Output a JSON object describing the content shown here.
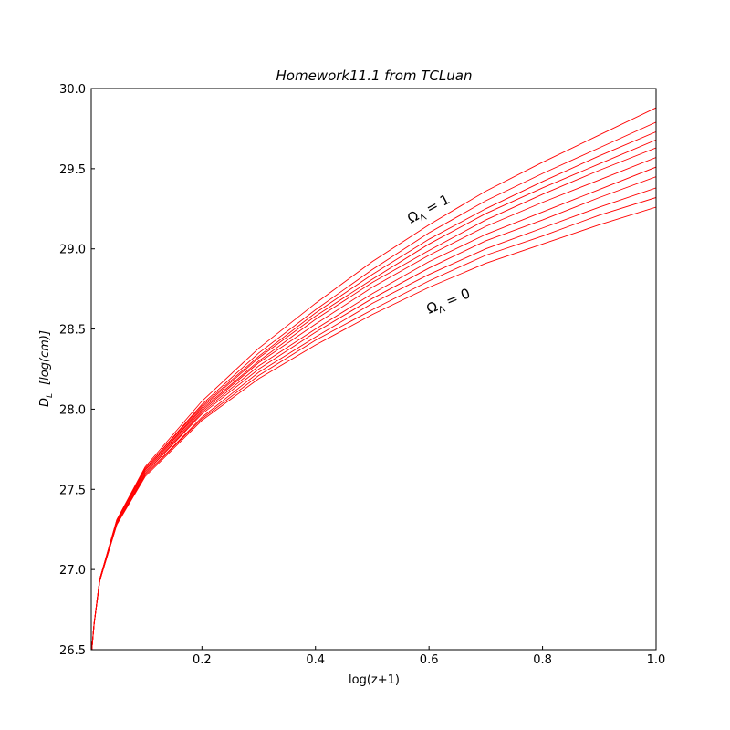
{
  "chart_data": {
    "type": "line",
    "title": "Homework11.1   from   TCLuan",
    "xlabel": "log(z+1)",
    "ylabel": {
      "main": "D",
      "sub": "L",
      "unit": "[log(cm)]"
    },
    "annotations": [
      {
        "main": "Ω",
        "sub": "Λ",
        "rest": " = 1"
      },
      {
        "main": "Ω",
        "sub": "Λ",
        "rest": " = 0"
      }
    ],
    "xlim": [
      0.005,
      1
    ],
    "ylim": [
      26.5,
      30
    ],
    "xticks": [
      0.2,
      0.4,
      0.6,
      0.8,
      {
        "value": 1,
        "label": "1.0"
      }
    ],
    "yticks": [
      26.5,
      {
        "value": 27,
        "label": "27.0"
      },
      27.5,
      {
        "value": 28,
        "label": "28.0"
      },
      28.5,
      {
        "value": 29,
        "label": "29.0"
      },
      29.5,
      {
        "value": 30,
        "label": "30.0"
      }
    ],
    "x": [
      0.006,
      0.01,
      0.02,
      0.05,
      0.1,
      0.2,
      0.3,
      0.4,
      0.5,
      0.6,
      0.7,
      0.8,
      0.9,
      1.0
    ],
    "series": [
      {
        "color": "#ff0000",
        "values": [
          26.5,
          26.66,
          26.93,
          27.28,
          27.58,
          27.93,
          28.19,
          28.4,
          28.59,
          28.76,
          28.91,
          29.03,
          29.15,
          29.26
        ]
      },
      {
        "color": "#ff0000",
        "values": [
          26.5,
          26.66,
          26.93,
          27.28,
          27.59,
          27.94,
          28.21,
          28.43,
          28.62,
          28.8,
          28.96,
          29.08,
          29.21,
          29.32
        ]
      },
      {
        "color": "#ff0000",
        "values": [
          26.5,
          26.66,
          26.93,
          27.29,
          27.59,
          27.95,
          28.23,
          28.45,
          28.66,
          28.84,
          29.0,
          29.13,
          29.26,
          29.38
        ]
      },
      {
        "color": "#ff0000",
        "values": [
          26.5,
          26.66,
          26.93,
          27.29,
          27.6,
          27.97,
          28.25,
          28.48,
          28.69,
          28.88,
          29.05,
          29.18,
          29.32,
          29.45
        ]
      },
      {
        "color": "#ff0000",
        "values": [
          26.5,
          26.66,
          26.93,
          27.29,
          27.6,
          27.98,
          28.27,
          28.5,
          28.72,
          28.92,
          29.09,
          29.23,
          29.37,
          29.51
        ]
      },
      {
        "color": "#ff0000",
        "values": [
          26.5,
          26.66,
          26.94,
          27.3,
          27.61,
          27.99,
          28.29,
          28.53,
          28.76,
          28.96,
          29.14,
          29.29,
          29.43,
          29.57
        ]
      },
      {
        "color": "#ff0000",
        "values": [
          26.5,
          26.66,
          26.94,
          27.3,
          27.62,
          28.0,
          28.3,
          28.56,
          28.79,
          28.99,
          29.18,
          29.34,
          29.49,
          29.63
        ]
      },
      {
        "color": "#ff0000",
        "values": [
          26.5,
          26.66,
          26.94,
          27.3,
          27.62,
          28.01,
          28.32,
          28.58,
          28.81,
          29.03,
          29.22,
          29.38,
          29.53,
          29.68
        ]
      },
      {
        "color": "#ff0000",
        "values": [
          26.5,
          26.66,
          26.94,
          27.3,
          27.63,
          28.02,
          28.33,
          28.6,
          28.84,
          29.06,
          29.25,
          29.42,
          29.58,
          29.73
        ]
      },
      {
        "color": "#ff0000",
        "values": [
          26.5,
          26.66,
          26.94,
          27.31,
          27.63,
          28.03,
          28.35,
          28.62,
          28.87,
          29.1,
          29.3,
          29.47,
          29.63,
          29.79
        ]
      },
      {
        "color": "#ff0000",
        "values": [
          26.5,
          26.66,
          26.94,
          27.31,
          27.64,
          28.05,
          28.38,
          28.66,
          28.92,
          29.15,
          29.36,
          29.54,
          29.71,
          29.88
        ]
      }
    ]
  }
}
